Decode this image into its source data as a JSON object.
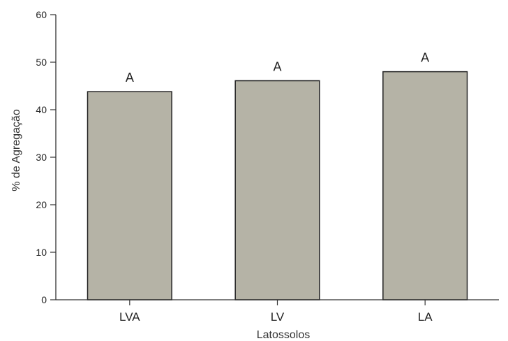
{
  "chart_data": {
    "type": "bar",
    "categories": [
      "LVA",
      "LV",
      "LA"
    ],
    "values": [
      43.8,
      46.1,
      48.0
    ],
    "data_labels": [
      "A",
      "A",
      "A"
    ],
    "xlabel": "Latossolos",
    "ylabel": "% de Agregação",
    "ylim": [
      0,
      60
    ],
    "yticks": [
      0,
      10,
      20,
      30,
      40,
      50,
      60
    ],
    "grid": false,
    "bar_color": "#b5b3a6",
    "bar_edge_color": "#222222"
  }
}
